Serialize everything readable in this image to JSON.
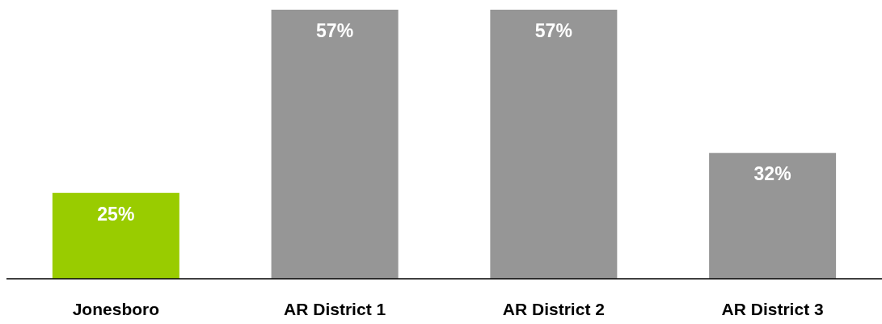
{
  "chart_data": {
    "type": "bar",
    "categories": [
      "Jonesboro",
      "AR District 1",
      "AR District 2",
      "AR District 3"
    ],
    "values": [
      25,
      57,
      57,
      32
    ],
    "colors": [
      "#99cc00",
      "#969696",
      "#969696",
      "#969696"
    ],
    "ylim": [
      10,
      57
    ],
    "tick_labels": "x",
    "value_labels": [
      "25%",
      "57%",
      "57%",
      "32%"
    ],
    "grid": false,
    "legend": false
  }
}
